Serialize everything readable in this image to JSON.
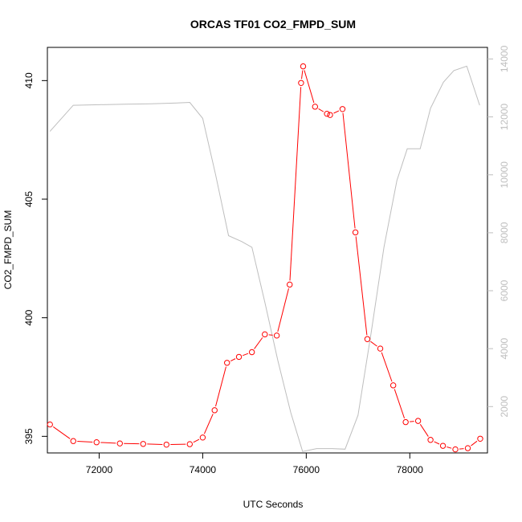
{
  "chart_data": {
    "type": "line",
    "title": "ORCAS TF01 CO2_FMPD_SUM",
    "xlabel": "UTC Seconds",
    "ylabel": "CO2_FMPD_SUM",
    "xlim": [
      71000,
      79500
    ],
    "ylim": [
      394.3,
      411.4
    ],
    "y2lim": [
      400,
      14400
    ],
    "x_ticks": [
      72000,
      74000,
      76000,
      78000
    ],
    "y_ticks": [
      395,
      400,
      405,
      410
    ],
    "y2_ticks": [
      2000,
      4000,
      6000,
      8000,
      10000,
      12000,
      14000
    ],
    "colors": {
      "primary": "#ff0000",
      "secondary": "#bebebe"
    },
    "series": [
      {
        "axis": "left",
        "style": "line-with-circles",
        "color": "#ff0000",
        "x": [
          71050,
          71500,
          71950,
          72400,
          72850,
          73300,
          73750,
          74000,
          74230,
          74470,
          74700,
          74950,
          75200,
          75430,
          75680,
          75900,
          75940,
          76170,
          76400,
          76460,
          76700,
          76950,
          77180,
          77430,
          77680,
          77920,
          78160,
          78400,
          78640,
          78880,
          79120,
          79360
        ],
        "y": [
          395.5,
          394.8,
          394.75,
          394.7,
          394.68,
          394.65,
          394.67,
          394.95,
          396.1,
          398.1,
          398.35,
          398.55,
          399.3,
          399.25,
          401.4,
          409.9,
          410.6,
          408.9,
          408.6,
          408.55,
          408.8,
          403.6,
          399.1,
          398.7,
          397.15,
          395.6,
          395.65,
          394.85,
          394.6,
          394.45,
          394.5,
          394.9
        ]
      },
      {
        "axis": "right",
        "style": "line",
        "color": "#bebebe",
        "x": [
          71050,
          71500,
          72000,
          72500,
          73000,
          73500,
          73750,
          74000,
          74250,
          74500,
          74750,
          74950,
          75200,
          75450,
          75700,
          75930,
          76200,
          76500,
          76750,
          77000,
          77250,
          77500,
          77750,
          77950,
          78200,
          78400,
          78650,
          78850,
          79100,
          79350
        ],
        "y": [
          11500,
          12400,
          12420,
          12440,
          12450,
          12480,
          12500,
          11950,
          10000,
          7900,
          7700,
          7500,
          5600,
          3600,
          1800,
          450,
          550,
          550,
          530,
          1700,
          4500,
          7500,
          9800,
          10900,
          10900,
          12300,
          13200,
          13600,
          13750,
          12400
        ]
      }
    ]
  }
}
